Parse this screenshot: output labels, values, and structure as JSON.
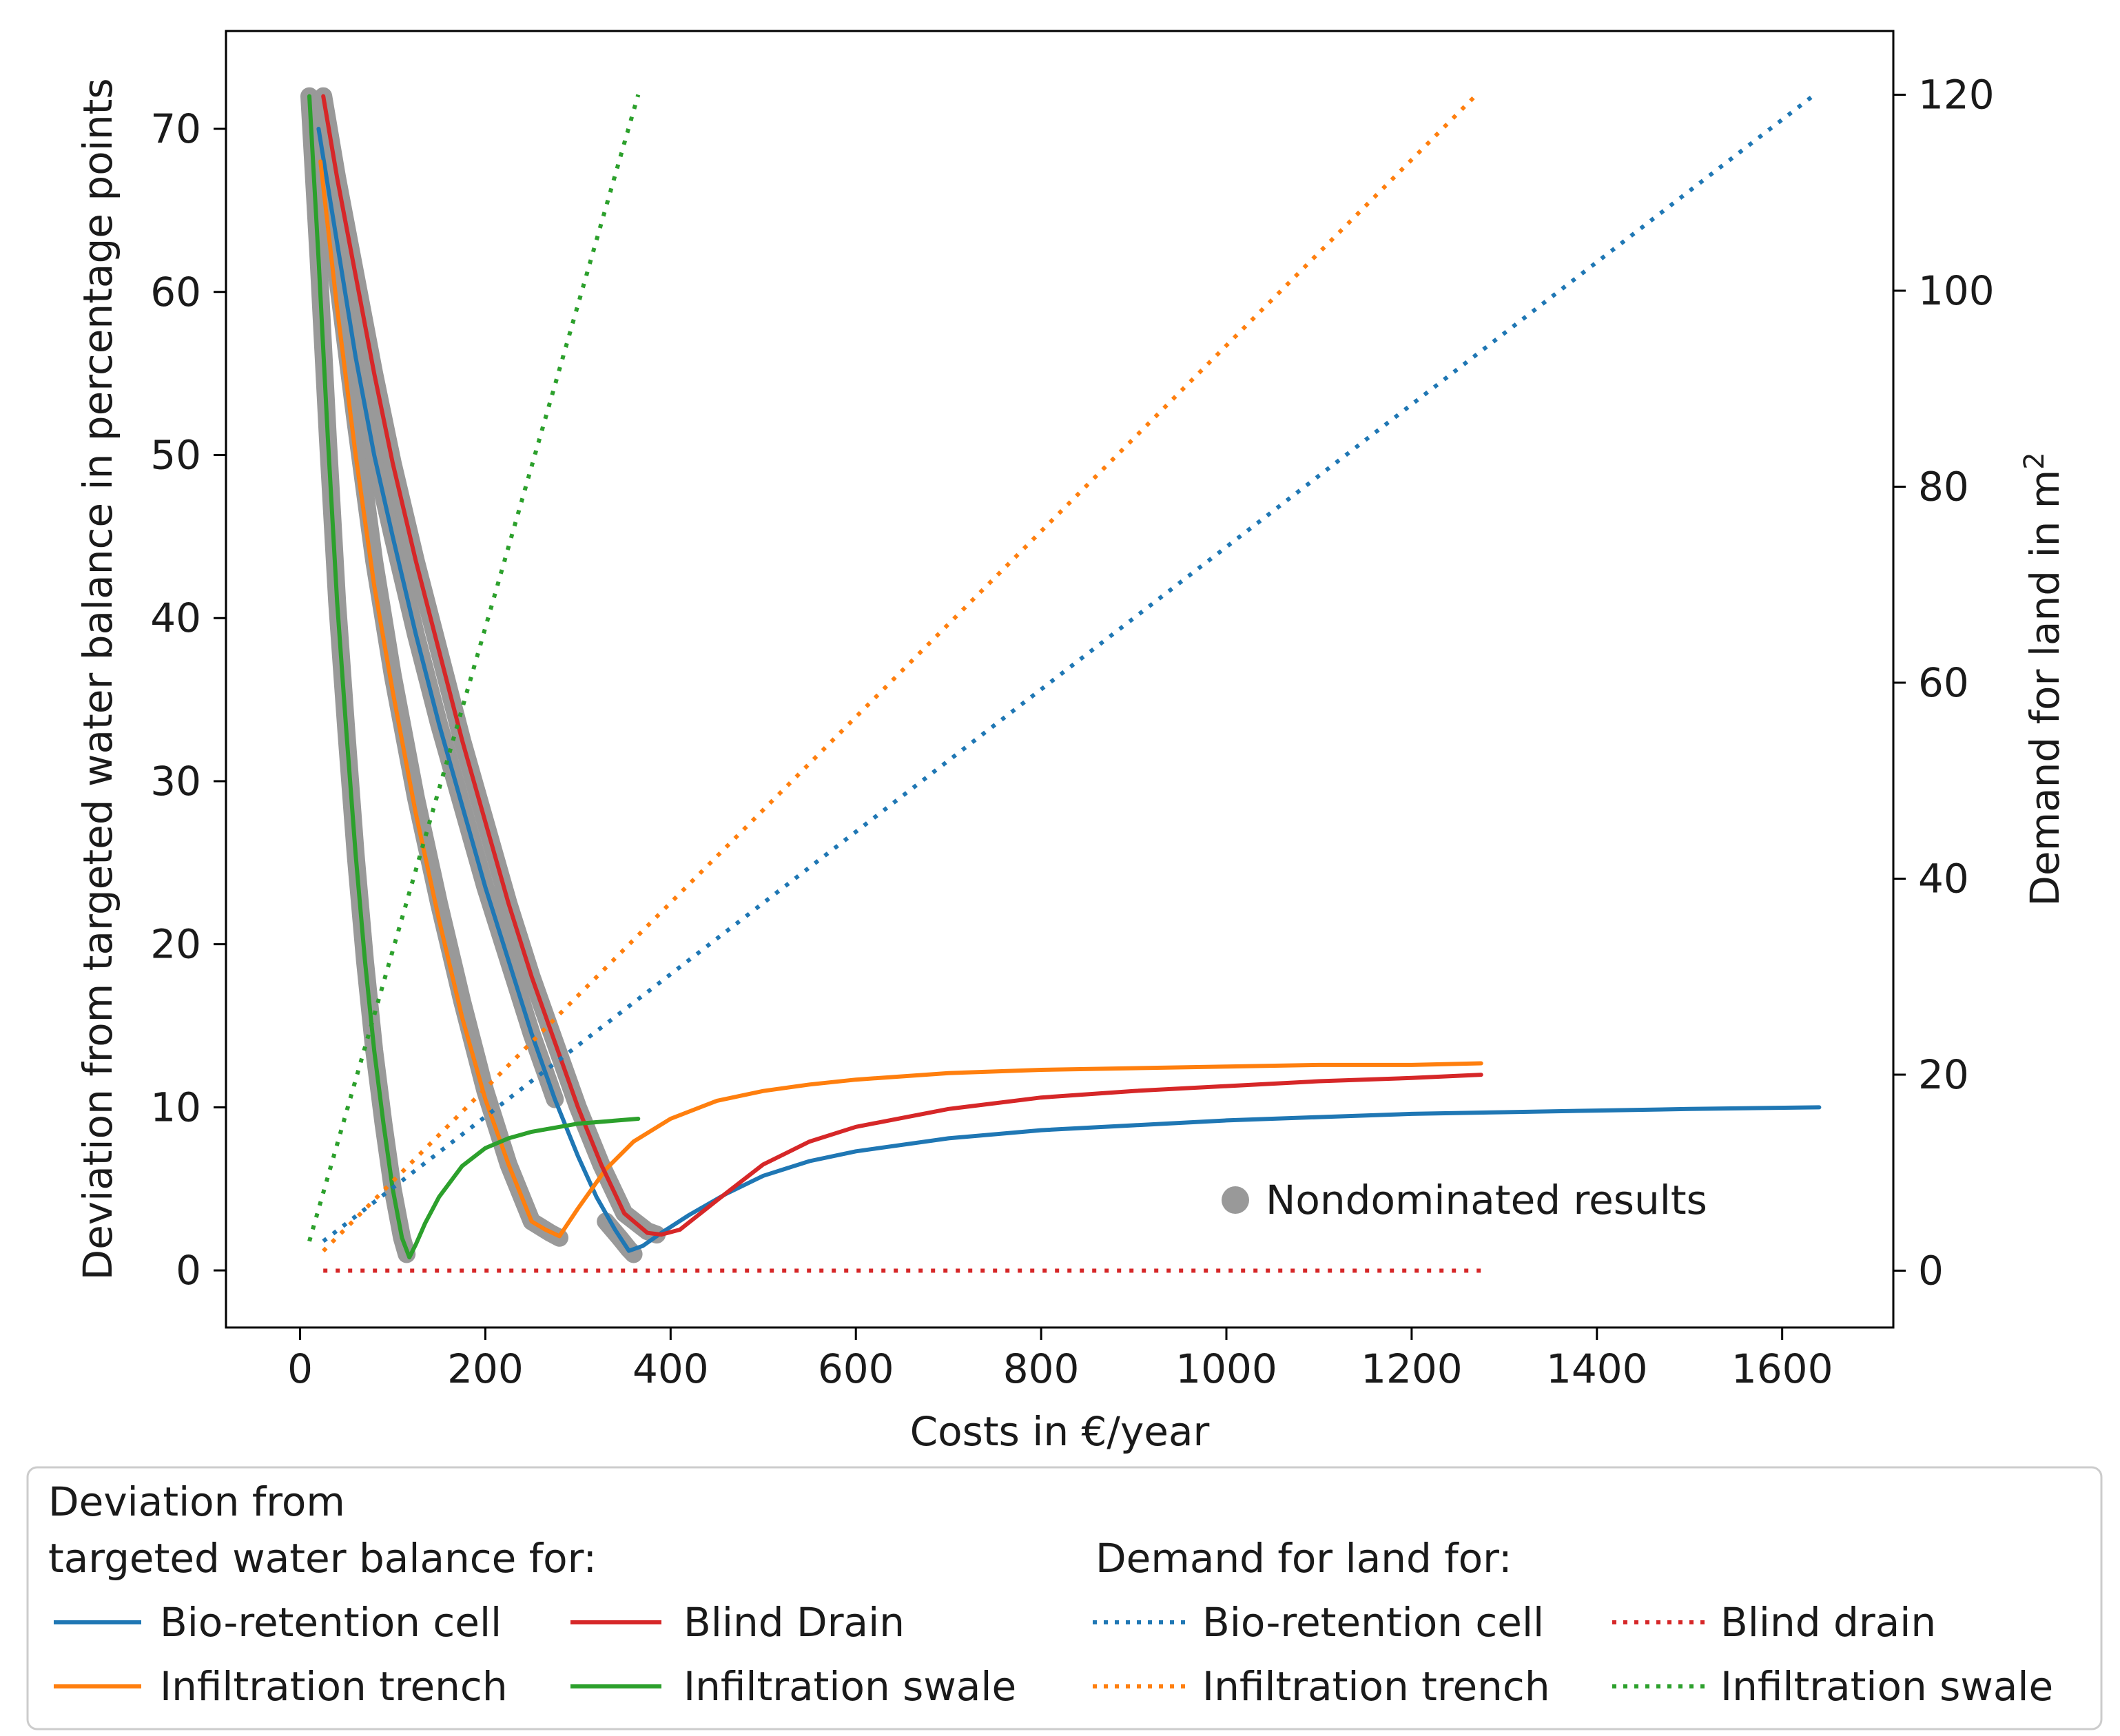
{
  "chart_data": {
    "type": "line",
    "xlabel": "Costs in €/year",
    "ylabel_left": "Deviation from targeted water balance in percentage points",
    "ylabel_right": "Demand for land in m",
    "ylabel_right_superscript": "2",
    "xlim": [
      -80,
      1720
    ],
    "ylim_left": [
      -3.5,
      76
    ],
    "ylim_right": [
      -5.8,
      126.5
    ],
    "x_ticks": [
      0,
      200,
      400,
      600,
      800,
      1000,
      1200,
      1400,
      1600
    ],
    "y_left_ticks": [
      0,
      10,
      20,
      30,
      40,
      50,
      60,
      70
    ],
    "y_right_ticks": [
      0,
      20,
      40,
      60,
      80,
      100,
      120
    ],
    "grid": false,
    "annotation": "Nondominated results",
    "legend": {
      "deviation_title_line1": "Deviation from",
      "deviation_title_line2": "targeted water balance for:",
      "land_title": "Demand for land for:",
      "deviation_entries": [
        "Bio-retention cell",
        "Blind Drain",
        "Infiltration trench",
        "Infiltration swale"
      ],
      "land_entries": [
        "Bio-retention cell",
        "Blind drain",
        "Infiltration trench",
        "Infiltration swale"
      ]
    },
    "colors": {
      "bio_retention": "#1f77b4",
      "trench": "#ff7f0e",
      "swale": "#2ca02c",
      "blind_drain": "#d62728",
      "nondominated": "#999999"
    },
    "deviation_series": [
      {
        "name": "Bio-retention cell",
        "color_key": "bio_retention",
        "x": [
          20,
          40,
          60,
          80,
          100,
          125,
          150,
          175,
          200,
          225,
          250,
          275,
          300,
          320,
          340,
          355,
          370,
          390,
          420,
          460,
          500,
          550,
          600,
          700,
          800,
          900,
          1000,
          1100,
          1200,
          1300,
          1400,
          1500,
          1640
        ],
        "y": [
          70,
          63,
          56,
          50,
          45,
          39,
          33.5,
          28.5,
          23.5,
          19,
          14.5,
          10.5,
          7,
          4.5,
          2.5,
          1.2,
          1.5,
          2.3,
          3.4,
          4.7,
          5.8,
          6.7,
          7.3,
          8.1,
          8.6,
          8.9,
          9.2,
          9.4,
          9.6,
          9.7,
          9.8,
          9.9,
          10.0
        ]
      },
      {
        "name": "Infiltration trench",
        "color_key": "trench",
        "x": [
          22,
          40,
          60,
          80,
          100,
          125,
          150,
          175,
          200,
          225,
          250,
          265,
          280,
          300,
          330,
          360,
          400,
          450,
          500,
          550,
          600,
          700,
          800,
          900,
          1000,
          1100,
          1200,
          1275
        ],
        "y": [
          68,
          59,
          50,
          42,
          35.5,
          28,
          21.5,
          15.5,
          10.5,
          6.5,
          3,
          2.5,
          2.1,
          3.8,
          6.2,
          7.9,
          9.3,
          10.4,
          11,
          11.4,
          11.7,
          12.1,
          12.3,
          12.4,
          12.5,
          12.6,
          12.6,
          12.7
        ]
      },
      {
        "name": "Blind Drain",
        "color_key": "blind_drain",
        "x": [
          25,
          40,
          60,
          80,
          100,
          125,
          150,
          175,
          200,
          225,
          250,
          275,
          300,
          325,
          350,
          375,
          390,
          410,
          450,
          500,
          550,
          600,
          700,
          800,
          900,
          1000,
          1100,
          1200,
          1275
        ],
        "y": [
          72,
          67,
          61,
          55,
          49.5,
          43.5,
          38,
          32.5,
          27.5,
          22.5,
          18,
          14,
          10,
          6.5,
          3.5,
          2.3,
          2.2,
          2.5,
          4.3,
          6.5,
          7.9,
          8.8,
          9.9,
          10.6,
          11.0,
          11.3,
          11.6,
          11.8,
          12.0
        ]
      },
      {
        "name": "Infiltration swale",
        "color_key": "swale",
        "x": [
          10,
          20,
          30,
          40,
          50,
          60,
          70,
          80,
          90,
          100,
          110,
          118,
          125,
          135,
          150,
          175,
          200,
          225,
          250,
          300,
          365
        ],
        "y": [
          72,
          62,
          51,
          41,
          33,
          25.5,
          19,
          13.5,
          9,
          5,
          2,
          0.8,
          1.6,
          2.9,
          4.5,
          6.4,
          7.5,
          8.1,
          8.5,
          9.0,
          9.3
        ]
      }
    ],
    "land_series": [
      {
        "name": "Bio-retention cell",
        "color_key": "bio_retention",
        "x": [
          25,
          1635
        ],
        "y": [
          3,
          120
        ]
      },
      {
        "name": "Infiltration trench",
        "color_key": "trench",
        "x": [
          25,
          1270
        ],
        "y": [
          2,
          120
        ]
      },
      {
        "name": "Infiltration swale",
        "color_key": "swale",
        "x": [
          10,
          365
        ],
        "y": [
          3,
          120
        ]
      },
      {
        "name": "Blind drain",
        "color_key": "blind_drain",
        "x": [
          25,
          1275
        ],
        "y": [
          0,
          0
        ]
      }
    ],
    "nondominated": [
      {
        "x": [
          10,
          20,
          30,
          40,
          50,
          60,
          70,
          80,
          90,
          100,
          110,
          115
        ],
        "y": [
          72,
          62,
          51,
          41,
          33,
          25.5,
          19,
          13.5,
          9,
          5,
          2,
          1
        ]
      },
      {
        "x": [
          22,
          40,
          60,
          80,
          100,
          125,
          150,
          175,
          200,
          225,
          250,
          270,
          280
        ],
        "y": [
          70,
          61,
          52,
          43.5,
          36.5,
          29,
          22.5,
          16.5,
          11,
          6.5,
          3,
          2.3,
          2.0
        ]
      },
      {
        "x": [
          20,
          40,
          60,
          80,
          100,
          125,
          150,
          175,
          200,
          225,
          250,
          275
        ],
        "y": [
          70,
          63,
          56,
          50,
          45,
          39,
          33.5,
          28.5,
          23.5,
          19,
          14.5,
          10.5
        ]
      },
      {
        "x": [
          25,
          40,
          60,
          80,
          100,
          125,
          150,
          175,
          200,
          225,
          250,
          275,
          300,
          325,
          350,
          375,
          385
        ],
        "y": [
          72,
          67,
          61,
          55,
          49.5,
          43.5,
          38,
          32.5,
          27.5,
          22.5,
          18,
          14,
          10,
          6.5,
          3.5,
          2.4,
          2.2
        ]
      },
      {
        "x": [
          330,
          345,
          355,
          360
        ],
        "y": [
          3.0,
          2.0,
          1.3,
          1.0
        ]
      }
    ]
  }
}
